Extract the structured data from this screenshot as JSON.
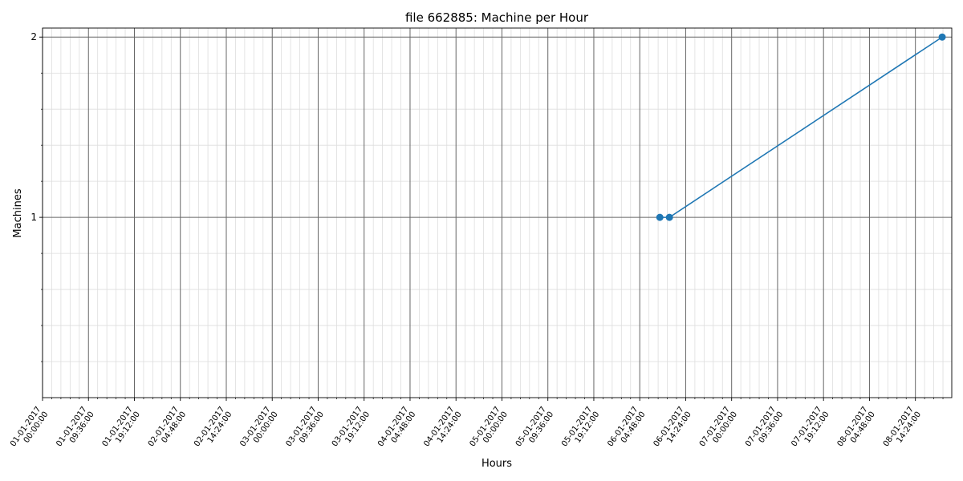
{
  "chart_data": {
    "type": "line",
    "title": "file 662885: Machine per Hour",
    "xlabel": "Hours",
    "ylabel": "Machines",
    "x_tick_labels": [
      [
        "01-01-2017",
        "00:00:00"
      ],
      [
        "01-01-2017",
        "09:36:00"
      ],
      [
        "01-01-2017",
        "19:12:00"
      ],
      [
        "02-01-2017",
        "04:48:00"
      ],
      [
        "02-01-2017",
        "14:24:00"
      ],
      [
        "03-01-2017",
        "00:00:00"
      ],
      [
        "03-01-2017",
        "09:36:00"
      ],
      [
        "03-01-2017",
        "19:12:00"
      ],
      [
        "04-01-2017",
        "04:48:00"
      ],
      [
        "04-01-2017",
        "14:24:00"
      ],
      [
        "05-01-2017",
        "00:00:00"
      ],
      [
        "05-01-2017",
        "09:36:00"
      ],
      [
        "05-01-2017",
        "19:12:00"
      ],
      [
        "06-01-2017",
        "04:48:00"
      ],
      [
        "06-01-2017",
        "14:24:00"
      ],
      [
        "07-01-2017",
        "00:00:00"
      ],
      [
        "07-01-2017",
        "09:36:00"
      ],
      [
        "07-01-2017",
        "19:12:00"
      ],
      [
        "08-01-2017",
        "04:48:00"
      ],
      [
        "08-01-2017",
        "14:24:00"
      ]
    ],
    "y_ticks": [
      1,
      2
    ],
    "ylim": [
      0,
      2.05
    ],
    "xlim": [
      "2017-01-01 00:00",
      "2017-01-08 22:00"
    ],
    "series": [
      {
        "x": [
          "2017-01-06 09:00",
          "2017-01-06 11:00",
          "2017-01-08 20:00"
        ],
        "y": [
          1,
          1,
          2
        ]
      }
    ],
    "grid": true,
    "colors": {
      "line": "#1f77b4",
      "major_grid": "#666666",
      "minor_grid": "#dddddd"
    }
  }
}
